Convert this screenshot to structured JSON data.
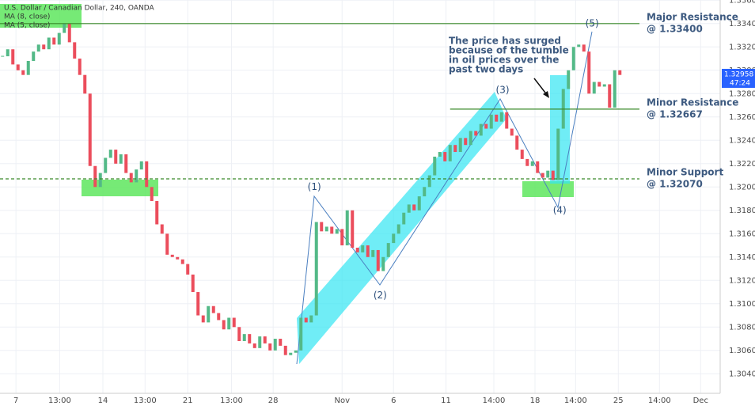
{
  "chart_data": {
    "type": "candlestick",
    "title": "U.S. Dollar / Canadian Dollar, 240, OANDA",
    "legend": [
      "MA (8, close)",
      "MA (5, close)"
    ],
    "up_color": "#53b987",
    "down_color": "#eb4d5c",
    "grid": true,
    "x": [
      0,
      1,
      2,
      3,
      4,
      5,
      6,
      7,
      8,
      9,
      10,
      11,
      12,
      13,
      14,
      15,
      16,
      17,
      18,
      19,
      20,
      21,
      22,
      23,
      24,
      25,
      26,
      27,
      28,
      29,
      30,
      31,
      32,
      33,
      34,
      35,
      36,
      37,
      38,
      39,
      40,
      41,
      42,
      43,
      44,
      45,
      46,
      47,
      48,
      49,
      50,
      51,
      52,
      53,
      54,
      55,
      56,
      57,
      58,
      59,
      60,
      61,
      62,
      63,
      64,
      65,
      66,
      67,
      68,
      69,
      70,
      71,
      72,
      73,
      74,
      75,
      76,
      77,
      78,
      79,
      80,
      81,
      82,
      83,
      84,
      85,
      86,
      87,
      88,
      89,
      90,
      91,
      92,
      93,
      94,
      95,
      96,
      97,
      98,
      99,
      100,
      101,
      102,
      103,
      104,
      105,
      106,
      107,
      108,
      109,
      110,
      111,
      112,
      113,
      114,
      115,
      116,
      117,
      118,
      119,
      120
    ],
    "values": [
      1.3312,
      1.3318,
      1.3305,
      1.33,
      1.3296,
      1.3308,
      1.3316,
      1.3322,
      1.3318,
      1.3328,
      1.3322,
      1.3332,
      1.334,
      1.3324,
      1.331,
      1.3296,
      1.328,
      1.3218,
      1.32,
      1.3212,
      1.3225,
      1.3232,
      1.322,
      1.3228,
      1.3212,
      1.3204,
      1.3215,
      1.3222,
      1.32,
      1.3188,
      1.3168,
      1.316,
      1.3142,
      1.314,
      1.3138,
      1.3134,
      1.3125,
      1.311,
      1.309,
      1.3084,
      1.3098,
      1.3092,
      1.3086,
      1.3078,
      1.3088,
      1.308,
      1.3068,
      1.3074,
      1.3066,
      1.3062,
      1.3072,
      1.3066,
      1.306,
      1.307,
      1.3064,
      1.3056,
      1.3058,
      1.306,
      1.3088,
      1.3084,
      1.309,
      1.317,
      1.3162,
      1.3166,
      1.316,
      1.3164,
      1.315,
      1.318,
      1.3148,
      1.3144,
      1.315,
      1.314,
      1.3146,
      1.3128,
      1.314,
      1.3152,
      1.316,
      1.3168,
      1.3178,
      1.3185,
      1.318,
      1.3192,
      1.32,
      1.321,
      1.3226,
      1.323,
      1.3222,
      1.3236,
      1.323,
      1.3242,
      1.3236,
      1.3248,
      1.3244,
      1.3254,
      1.325,
      1.3262,
      1.3256,
      1.3264,
      1.325,
      1.3244,
      1.3232,
      1.3224,
      1.3218,
      1.3222,
      1.3212,
      1.3208,
      1.3214,
      1.3206,
      1.325,
      1.3284,
      1.33,
      1.332,
      1.3322,
      1.3316,
      1.328,
      1.329,
      1.3286,
      1.3288,
      1.3268,
      1.33,
      1.3296
    ],
    "xlim": [
      -0.5,
      139.5
    ],
    "xticks": [
      {
        "value": 2.6,
        "label": "7"
      },
      {
        "value": 11.1,
        "label": "13:00"
      },
      {
        "value": 19.5,
        "label": "14"
      },
      {
        "value": 27.7,
        "label": "13:00"
      },
      {
        "value": 36,
        "label": "21"
      },
      {
        "value": 44.5,
        "label": "13:00"
      },
      {
        "value": 52.6,
        "label": "28"
      },
      {
        "value": 66,
        "label": "Nov"
      },
      {
        "value": 76,
        "label": "6"
      },
      {
        "value": 86.2,
        "label": "11"
      },
      {
        "value": 95.5,
        "label": "14:00"
      },
      {
        "value": 103.5,
        "label": "18"
      },
      {
        "value": 111.4,
        "label": "14:00"
      },
      {
        "value": 119.7,
        "label": "25"
      },
      {
        "value": 127.7,
        "label": "14:00"
      },
      {
        "value": 135.7,
        "label": "Dec"
      }
    ],
    "ylim": [
      1.30368,
      1.33602
    ],
    "yticks": [
      {
        "value": 1.304,
        "label": "1.30400"
      },
      {
        "value": 1.306,
        "label": "1.30600"
      },
      {
        "value": 1.308,
        "label": "1.30800"
      },
      {
        "value": 1.31,
        "label": "1.31000"
      },
      {
        "value": 1.312,
        "label": "1.31200"
      },
      {
        "value": 1.314,
        "label": "1.31400"
      },
      {
        "value": 1.316,
        "label": "1.31600"
      },
      {
        "value": 1.318,
        "label": "1.31800"
      },
      {
        "value": 1.32,
        "label": "1.32000"
      },
      {
        "value": 1.322,
        "label": "1.32200"
      },
      {
        "value": 1.324,
        "label": "1.32400"
      },
      {
        "value": 1.326,
        "label": "1.32600"
      },
      {
        "value": 1.328,
        "label": "1.32800"
      },
      {
        "value": 1.33,
        "label": "1.33000"
      },
      {
        "value": 1.332,
        "label": "1.33200"
      },
      {
        "value": 1.334,
        "label": "1.33400"
      },
      {
        "value": 1.336,
        "label": "1.33600"
      }
    ],
    "levels": [
      {
        "name": "Major Resistance",
        "label": "@ 1.33400",
        "value": 1.334,
        "from": -0.5,
        "dashed": false
      },
      {
        "name": "Minor Resistance",
        "label": "@ 1.32667",
        "value": 1.32667,
        "from": 87,
        "dashed": false
      },
      {
        "name": "Minor Support",
        "label": "@ 1.32070",
        "value": 1.3207,
        "from": -0.5,
        "dashed": true
      }
    ],
    "waves": [
      {
        "label": "(1)",
        "x": 60.6,
        "y": 1.32
      },
      {
        "label": "(2)",
        "x": 73.4,
        "y": 1.3107
      },
      {
        "label": "(3)",
        "x": 97.2,
        "y": 1.3283
      },
      {
        "label": "(4)",
        "x": 108.3,
        "y": 1.318
      },
      {
        "label": "(5)",
        "x": 114.6,
        "y": 1.334
      }
    ],
    "note": [
      "The price has surged",
      "because of the tumble",
      "in oil prices over the",
      "past two days"
    ],
    "last_price": 1.32958,
    "countdown": "47:24"
  }
}
